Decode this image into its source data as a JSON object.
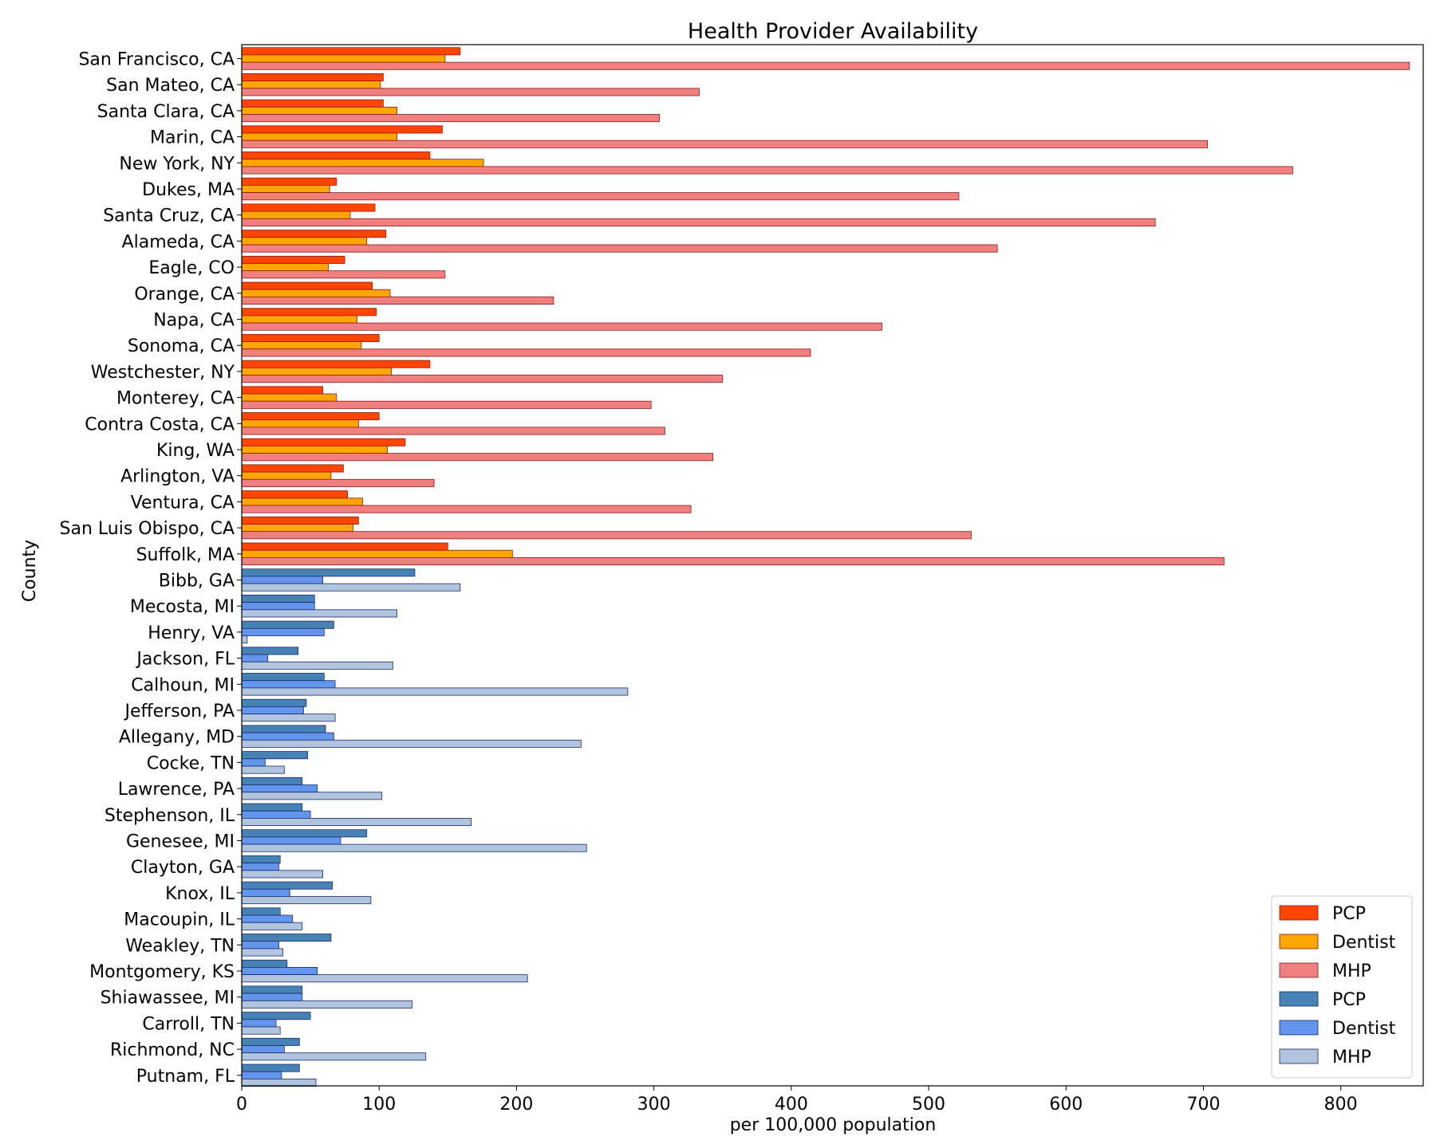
{
  "chart_data": {
    "type": "bar",
    "orientation": "horizontal",
    "title": "Health Provider Availability",
    "xlabel": "per 100,000 population",
    "ylabel": "County",
    "xlim": [
      0,
      860
    ],
    "xticks": [
      0,
      100,
      200,
      300,
      400,
      500,
      600,
      700,
      800
    ],
    "grid": false,
    "legend_position": "lower-right",
    "groups": [
      {
        "categories": [
          "San Francisco, CA",
          "San Mateo, CA",
          "Santa Clara, CA",
          "Marin, CA",
          "New York, NY",
          "Dukes, MA",
          "Santa Cruz, CA",
          "Alameda, CA",
          "Eagle, CO",
          "Orange, CA",
          "Napa, CA",
          "Sonoma, CA",
          "Westchester, NY",
          "Monterey, CA",
          "Contra Costa, CA",
          "King, WA",
          "Arlington, VA",
          "Ventura, CA",
          "San Luis Obispo, CA",
          "Suffolk, MA"
        ],
        "series": [
          {
            "name": "PCP",
            "color": "#ff4500",
            "values": [
              159,
              103,
              103,
              146,
              137,
              69,
              97,
              105,
              75,
              95,
              98,
              100,
              137,
              59,
              100,
              119,
              74,
              77,
              85,
              150
            ]
          },
          {
            "name": "Dentist",
            "color": "#ffa500",
            "values": [
              148,
              101,
              113,
              113,
              176,
              64,
              79,
              91,
              63,
              108,
              84,
              87,
              109,
              69,
              85,
              106,
              65,
              88,
              81,
              197
            ]
          },
          {
            "name": "MHP",
            "color": "#f08080",
            "values": [
              850,
              333,
              304,
              703,
              765,
              522,
              665,
              550,
              148,
              227,
              466,
              414,
              350,
              298,
              308,
              343,
              140,
              327,
              531,
              715
            ]
          }
        ]
      },
      {
        "categories": [
          "Bibb, GA",
          "Mecosta, MI",
          "Henry, VA",
          "Jackson, FL",
          "Calhoun, MI",
          "Jefferson, PA",
          "Allegany, MD",
          "Cocke, TN",
          "Lawrence, PA",
          "Stephenson, IL",
          "Genesee, MI",
          "Clayton, GA",
          "Knox, IL",
          "Macoupin, IL",
          "Weakley, TN",
          "Montgomery, KS",
          "Shiawassee, MI",
          "Carroll, TN",
          "Richmond, NC",
          "Putnam, FL"
        ],
        "series": [
          {
            "name": "PCP",
            "color": "#4682b4",
            "values": [
              126,
              53,
              67,
              41,
              60,
              47,
              61,
              48,
              44,
              44,
              91,
              28,
              66,
              28,
              65,
              33,
              44,
              50,
              42,
              42
            ]
          },
          {
            "name": "Dentist",
            "color": "#6495ed",
            "values": [
              59,
              53,
              60,
              19,
              68,
              45,
              67,
              17,
              55,
              50,
              72,
              27,
              35,
              37,
              27,
              55,
              44,
              25,
              31,
              29
            ]
          },
          {
            "name": "MHP",
            "color": "#b0c4de",
            "values": [
              159,
              113,
              4,
              110,
              281,
              68,
              247,
              31,
              102,
              167,
              251,
              59,
              94,
              44,
              30,
              208,
              124,
              28,
              134,
              54
            ]
          }
        ]
      }
    ],
    "legend": [
      {
        "label": "PCP",
        "color": "#ff4500"
      },
      {
        "label": "Dentist",
        "color": "#ffa500"
      },
      {
        "label": "MHP",
        "color": "#f08080"
      },
      {
        "label": "PCP",
        "color": "#4682b4"
      },
      {
        "label": "Dentist",
        "color": "#6495ed"
      },
      {
        "label": "MHP",
        "color": "#b0c4de"
      }
    ]
  }
}
